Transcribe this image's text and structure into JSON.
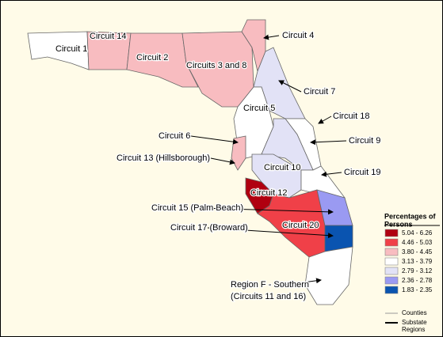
{
  "labels": [
    "Circuit 1",
    "Circuit 14",
    "Circuit 2",
    "Circuits 3 and 8",
    "Circuit 4",
    "Circuit 7",
    "Circuit 5",
    "Circuit 18",
    "Circuit 6",
    "Circuit 9",
    "Circuit 13 (Hillsborough)",
    "Circuit 10",
    "Circuit 19",
    "Circuit 12",
    "Circuit 15 (Palm Beach)",
    "Circuit 20",
    "Circuit 17 (Broward)",
    "Region F - Southern",
    "(Circuits 11 and 16)"
  ],
  "legend": {
    "title": [
      "Percentages of",
      "Persons"
    ],
    "items": [
      {
        "label": "5.04 - 6.26",
        "color": "#b00010"
      },
      {
        "label": "4.46 - 5.03",
        "color": "#f04048"
      },
      {
        "label": "3.80 - 4.45",
        "color": "#f8bcc0"
      },
      {
        "label": "3.13 - 3.79",
        "color": "#ffffff"
      },
      {
        "label": "2.79 - 3.12",
        "color": "#e2e2f6"
      },
      {
        "label": "2.36 - 2.78",
        "color": "#9a9af2"
      },
      {
        "label": "1.83 - 2.35",
        "color": "#0a54b0"
      }
    ],
    "lines": [
      {
        "label": [
          "Counties"
        ]
      },
      {
        "label": [
          "Substate",
          "Regions"
        ]
      }
    ]
  }
}
